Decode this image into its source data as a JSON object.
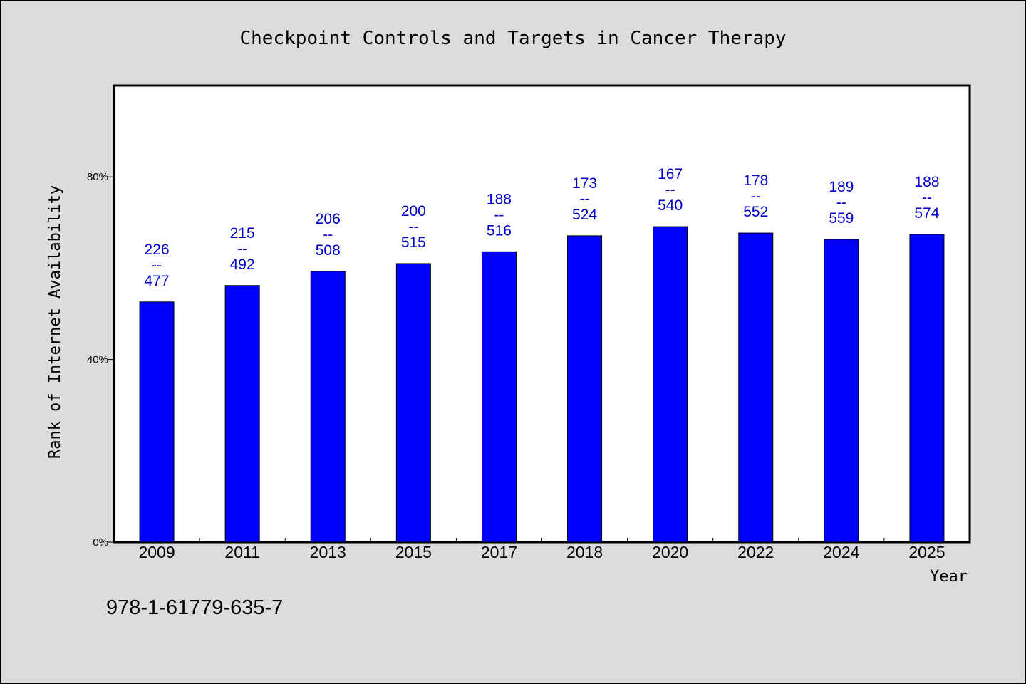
{
  "chart_data": {
    "type": "bar",
    "title": "Checkpoint Controls and Targets in Cancer Therapy",
    "xlabel": "Year",
    "ylabel": "Rank of Internet Availability",
    "categories": [
      "2009",
      "2011",
      "2013",
      "2015",
      "2017",
      "2018",
      "2020",
      "2022",
      "2024",
      "2025"
    ],
    "values": [
      52.6,
      56.2,
      59.3,
      61.0,
      63.6,
      67.1,
      69.1,
      67.7,
      66.3,
      67.4
    ],
    "value_unit": "%",
    "ylim": [
      0,
      100
    ],
    "yticks": [
      0,
      40,
      80
    ],
    "ytick_labels": [
      "0%",
      "40%",
      "80%"
    ],
    "data_labels": [
      {
        "top": "226",
        "sep": "--",
        "bottom": "477"
      },
      {
        "top": "215",
        "sep": "--",
        "bottom": "492"
      },
      {
        "top": "206",
        "sep": "--",
        "bottom": "508"
      },
      {
        "top": "200",
        "sep": "--",
        "bottom": "515"
      },
      {
        "top": "188",
        "sep": "--",
        "bottom": "516"
      },
      {
        "top": "173",
        "sep": "--",
        "bottom": "524"
      },
      {
        "top": "167",
        "sep": "--",
        "bottom": "540"
      },
      {
        "top": "178",
        "sep": "--",
        "bottom": "552"
      },
      {
        "top": "189",
        "sep": "--",
        "bottom": "559"
      },
      {
        "top": "188",
        "sep": "--",
        "bottom": "574"
      }
    ],
    "bar_color": "#0000ff",
    "label_color": "#0000cc",
    "grid": false,
    "legend": "none"
  },
  "footer": {
    "code": "978-1-61779-635-7"
  },
  "colors": {
    "background": "#dcdcdc",
    "plot_background": "#ffffff"
  }
}
